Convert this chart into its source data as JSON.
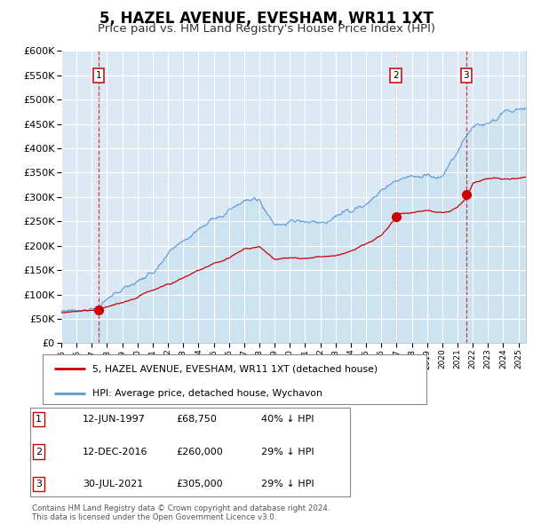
{
  "title": "5, HAZEL AVENUE, EVESHAM, WR11 1XT",
  "subtitle": "Price paid vs. HM Land Registry's House Price Index (HPI)",
  "ylim": [
    0,
    600000
  ],
  "yticks": [
    0,
    50000,
    100000,
    150000,
    200000,
    250000,
    300000,
    350000,
    400000,
    450000,
    500000,
    550000,
    600000
  ],
  "sale_dates_years": [
    1997.45,
    2016.95,
    2021.58
  ],
  "sale_prices": [
    68750,
    260000,
    305000
  ],
  "sale_labels": [
    "1",
    "2",
    "3"
  ],
  "legend_property": "5, HAZEL AVENUE, EVESHAM, WR11 1XT (detached house)",
  "legend_hpi": "HPI: Average price, detached house, Wychavon",
  "table_rows": [
    [
      "1",
      "12-JUN-1997",
      "£68,750",
      "40% ↓ HPI"
    ],
    [
      "2",
      "12-DEC-2016",
      "£260,000",
      "29% ↓ HPI"
    ],
    [
      "3",
      "30-JUL-2021",
      "£305,000",
      "29% ↓ HPI"
    ]
  ],
  "footer": "Contains HM Land Registry data © Crown copyright and database right 2024.\nThis data is licensed under the Open Government Licence v3.0.",
  "hpi_color": "#5b9bd5",
  "hpi_fill_color": "#c5dff0",
  "sale_line_color": "#cc0000",
  "sale_dot_color": "#cc0000",
  "vline_color": "#cc0000",
  "plot_bg_color": "#dce9f5",
  "title_fontsize": 12,
  "subtitle_fontsize": 9.5,
  "xlim_start": 1995,
  "xlim_end": 2025.5
}
